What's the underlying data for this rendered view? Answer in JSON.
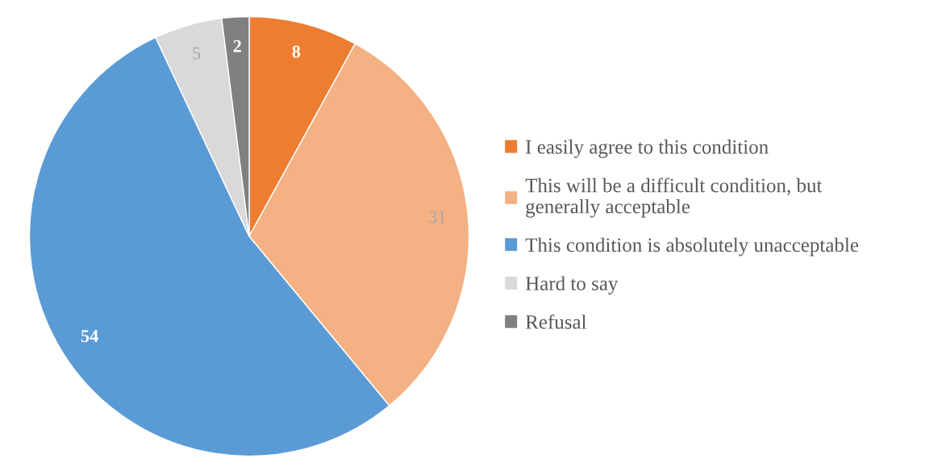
{
  "chart_data": {
    "type": "pie",
    "categories": [
      "I easily agree to this condition",
      "This will be a difficult condition, but\ngenerally acceptable",
      "This condition is absolutely unacceptable",
      "Hard to say",
      "Refusal"
    ],
    "values": [
      8,
      31,
      54,
      5,
      2
    ],
    "colors": [
      "#ed7d31",
      "#f4b183",
      "#5b9bd5",
      "#d9d9d9",
      "#808080"
    ],
    "data_labels": true,
    "legend": "right"
  }
}
